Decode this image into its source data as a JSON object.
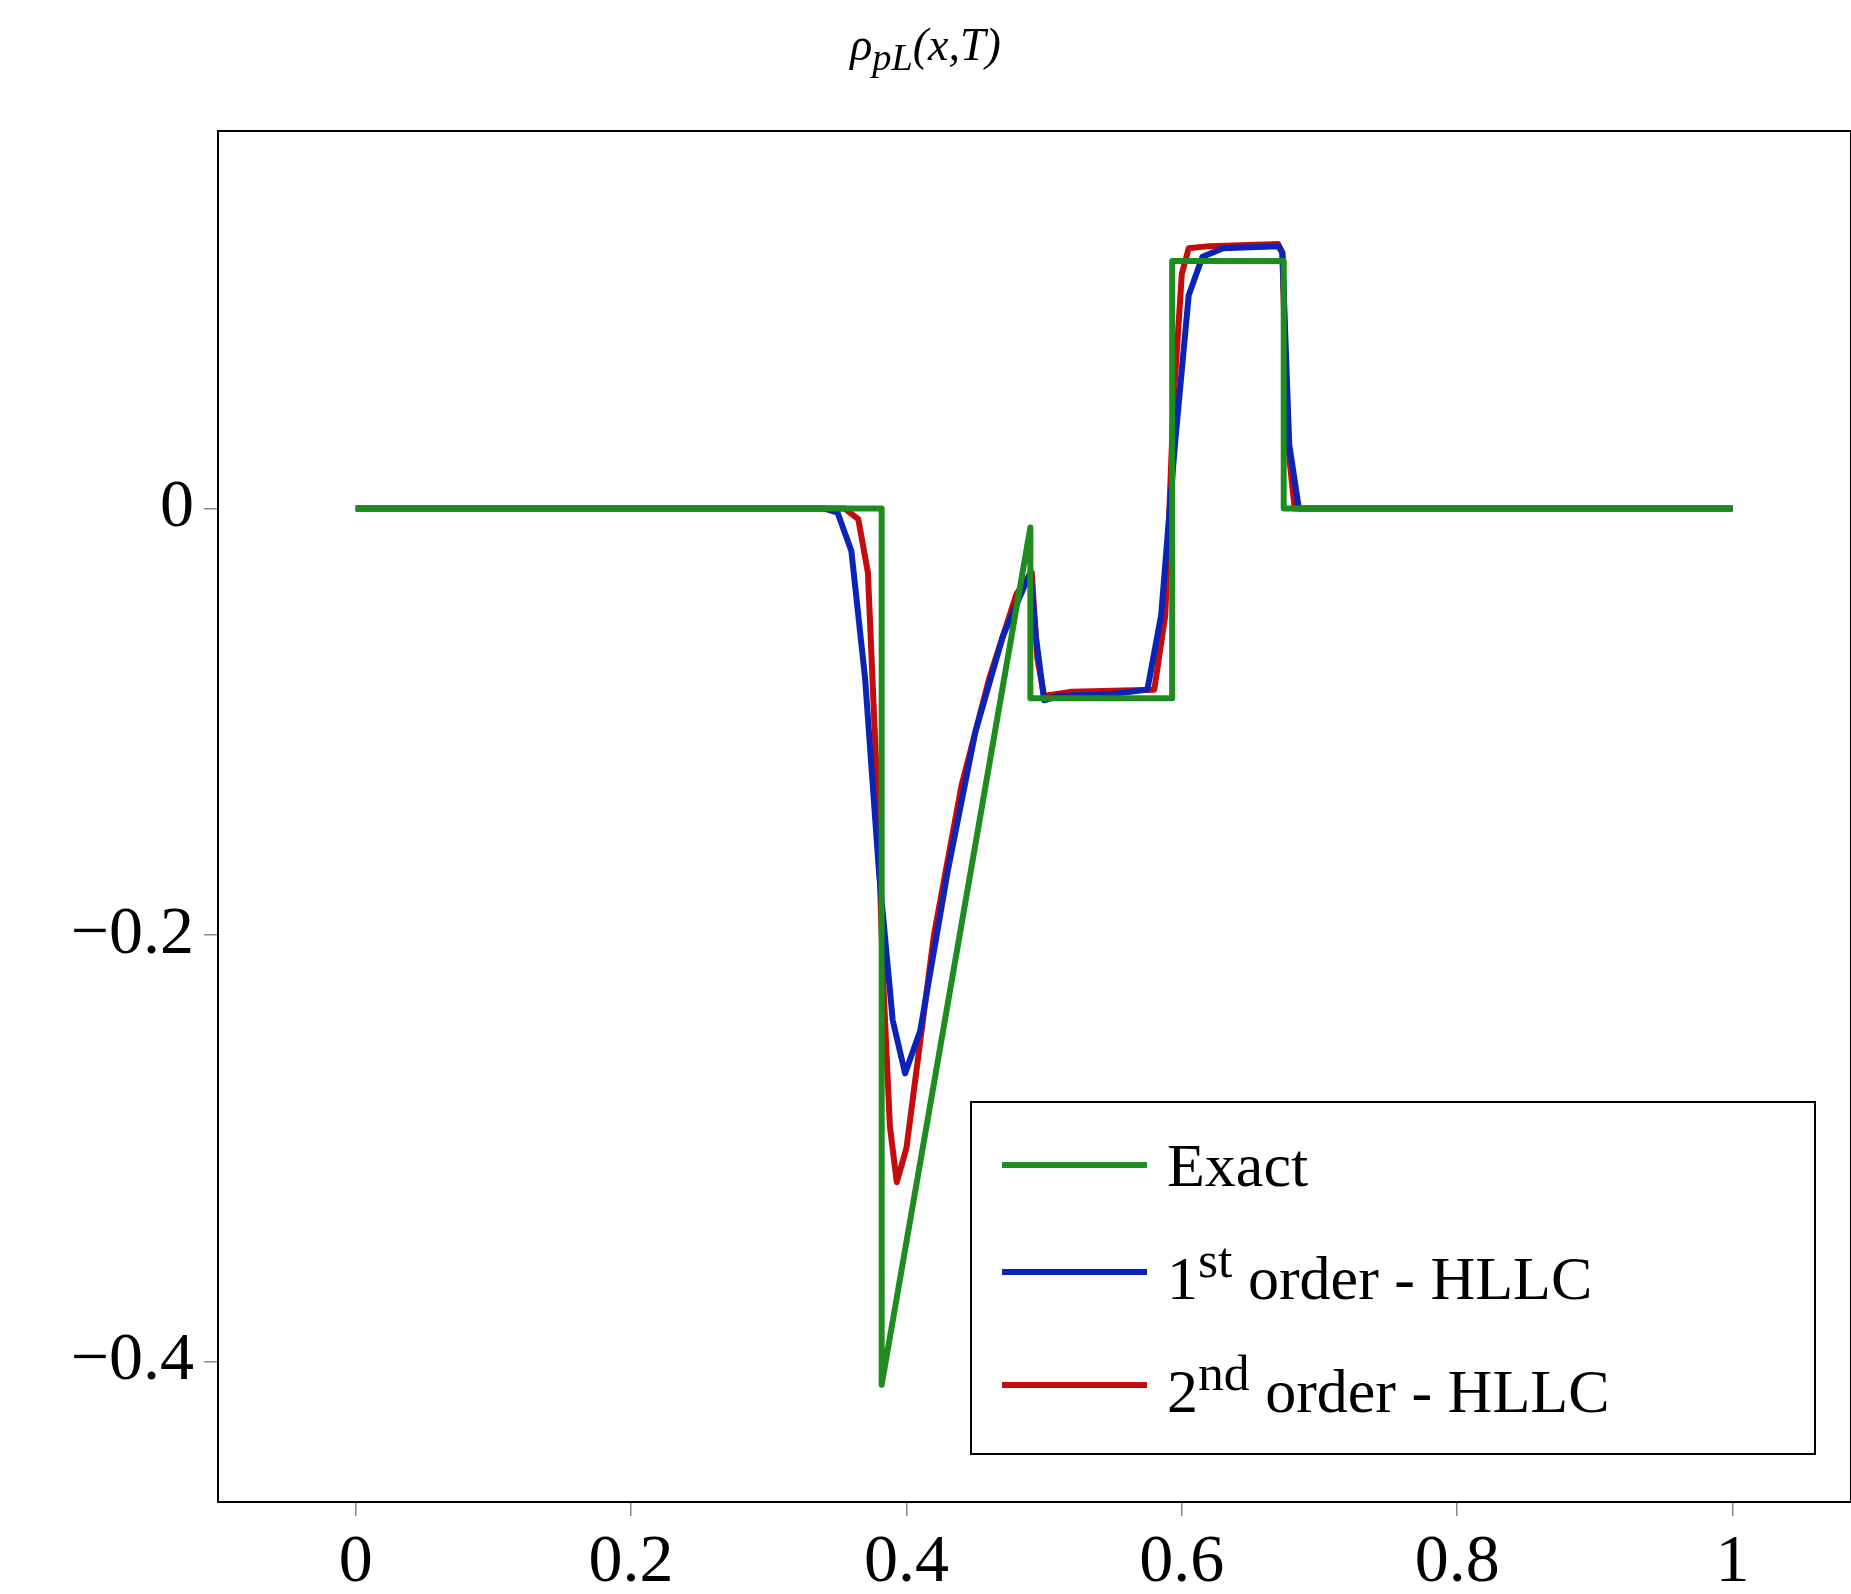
{
  "chart_data": {
    "type": "line",
    "title": "ρ$_{pL}$(x,T)",
    "xlim": [
      -0.1,
      1.086
    ],
    "ylim": [
      -0.466,
      0.177
    ],
    "xticks": [
      0,
      0.2,
      0.4,
      0.6,
      0.8,
      1
    ],
    "yticks": [
      0,
      {
        "value": -0.2,
        "label": "−0.2"
      },
      {
        "value": -0.4,
        "label": "−0.4"
      }
    ],
    "grid": false,
    "legend": "bottom right",
    "marker": "none",
    "line_style": "solid",
    "series": [
      {
        "name": "Exact",
        "color": "#1f8c1f",
        "x": [
          0,
          0.382,
          0.382,
          0.49,
          0.49,
          0.593,
          0.593,
          0.674,
          0.674,
          1
        ],
        "values": [
          0,
          0,
          -0.411,
          -0.009,
          -0.089,
          -0.089,
          0.116,
          0.116,
          0,
          0
        ]
      },
      {
        "name": "1$^{st}$ order - HLLC",
        "color": "#0b24b8",
        "x": [
          0,
          0.34,
          0.35,
          0.36,
          0.37,
          0.38,
          0.39,
          0.399,
          0.41,
          0.43,
          0.45,
          0.47,
          0.49,
          0.494,
          0.5,
          0.51,
          0.55,
          0.575,
          0.585,
          0.595,
          0.605,
          0.615,
          0.63,
          0.67,
          0.673,
          0.678,
          0.685,
          1
        ],
        "values": [
          0,
          0,
          -0.002,
          -0.02,
          -0.08,
          -0.17,
          -0.24,
          -0.265,
          -0.245,
          -0.17,
          -0.105,
          -0.06,
          -0.03,
          -0.06,
          -0.09,
          -0.088,
          -0.087,
          -0.085,
          -0.05,
          0.03,
          0.1,
          0.118,
          0.122,
          0.123,
          0.12,
          0.03,
          0,
          0
        ]
      },
      {
        "name": "2$^{nd}$ order - HLLC",
        "color": "#c40c0c",
        "x": [
          0,
          0.355,
          0.365,
          0.372,
          0.378,
          0.383,
          0.388,
          0.393,
          0.4,
          0.42,
          0.44,
          0.46,
          0.48,
          0.491,
          0.495,
          0.5,
          0.52,
          0.58,
          0.588,
          0.594,
          0.6,
          0.605,
          0.62,
          0.67,
          0.673,
          0.677,
          0.682,
          1
        ],
        "values": [
          0,
          0,
          -0.005,
          -0.03,
          -0.12,
          -0.22,
          -0.29,
          -0.316,
          -0.3,
          -0.2,
          -0.13,
          -0.08,
          -0.04,
          -0.03,
          -0.07,
          -0.088,
          -0.086,
          -0.085,
          -0.05,
          0.05,
          0.11,
          0.122,
          0.123,
          0.124,
          0.12,
          0.03,
          0,
          0
        ]
      }
    ]
  }
}
